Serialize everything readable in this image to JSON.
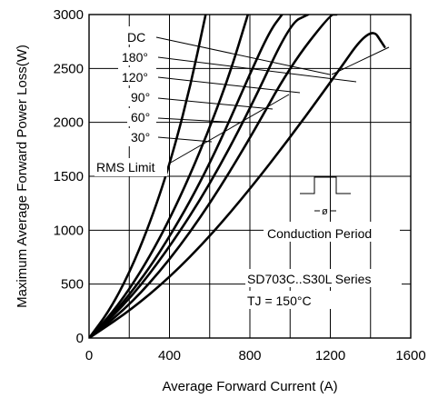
{
  "chart_data": {
    "type": "line",
    "xlabel": "Average Forward Current (A)",
    "ylabel": "Maximum Average Forward Power Loss(W)",
    "xlim": [
      0,
      1600
    ],
    "ylim": [
      0,
      3000
    ],
    "x_ticks": [
      "0",
      "400",
      "800",
      "1200",
      "1600"
    ],
    "y_ticks": [
      "0",
      "500",
      "1000",
      "1500",
      "2000",
      "2500",
      "3000"
    ],
    "grid": true,
    "series": [
      {
        "name": "30°",
        "x": [
          0,
          100,
          200,
          300,
          400,
          500,
          580
        ],
        "y": [
          0,
          250,
          600,
          1050,
          1600,
          2300,
          3000
        ]
      },
      {
        "name": "60°",
        "x": [
          0,
          100,
          200,
          300,
          400,
          500,
          600,
          700,
          790
        ],
        "y": [
          0,
          200,
          450,
          750,
          1100,
          1500,
          1950,
          2450,
          3000
        ]
      },
      {
        "name": "90°",
        "x": [
          0,
          100,
          200,
          300,
          400,
          500,
          600,
          700,
          800,
          900,
          960
        ],
        "y": [
          0,
          180,
          400,
          650,
          940,
          1260,
          1620,
          2020,
          2450,
          2850,
          3000
        ]
      },
      {
        "name": "120°",
        "x": [
          0,
          200,
          400,
          600,
          800,
          1000,
          1090
        ],
        "y": [
          0,
          350,
          840,
          1420,
          2120,
          2920,
          3000
        ]
      },
      {
        "name": "180°",
        "x": [
          0,
          200,
          400,
          600,
          800,
          1000,
          1200,
          1230
        ],
        "y": [
          0,
          300,
          720,
          1240,
          1850,
          2520,
          3000,
          3000
        ]
      },
      {
        "name": "DC",
        "x": [
          0,
          200,
          400,
          600,
          800,
          1000,
          1200,
          1400,
          1470
        ],
        "y": [
          0,
          250,
          560,
          940,
          1380,
          1860,
          2370,
          2900,
          2700
        ]
      }
    ],
    "annotations": {
      "labels": [
        "DC",
        "180°",
        "120°",
        "90°",
        "60°",
        "30°"
      ],
      "rms_limit": "RMS Limit",
      "conduction_symbol": "ø",
      "conduction_label": "Conduction Period",
      "series_label": "SD703C..S30L Series",
      "tj_label": "TJ = 150°C"
    }
  }
}
